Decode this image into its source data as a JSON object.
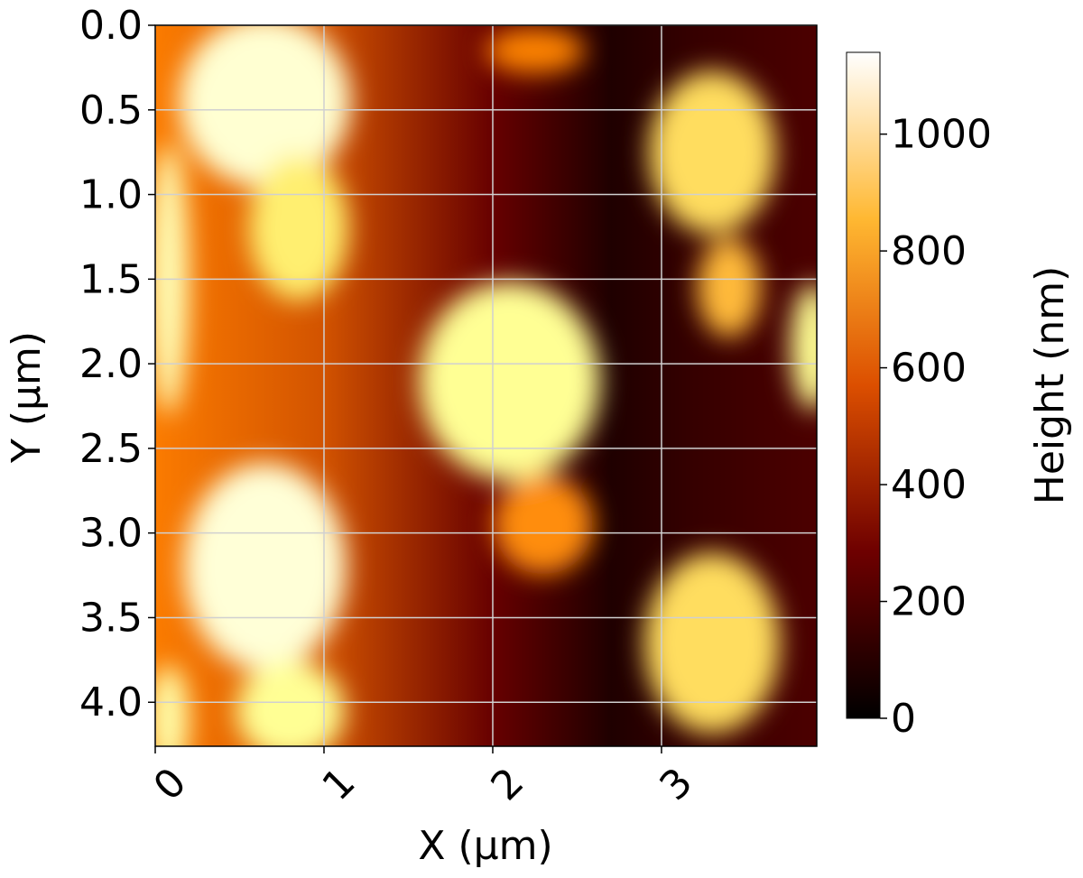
{
  "chart_data": {
    "type": "heatmap",
    "title": "",
    "xlabel": "X (µm)",
    "ylabel": "Y (µm)",
    "xlim": [
      0,
      3.92
    ],
    "ylim": [
      4.26,
      0
    ],
    "x_ticks": [
      0,
      1,
      2,
      3
    ],
    "x_tick_labels": [
      "0",
      "1",
      "2",
      "3"
    ],
    "y_ticks": [
      0.0,
      0.5,
      1.0,
      1.5,
      2.0,
      2.5,
      3.0,
      3.5,
      4.0
    ],
    "y_tick_labels": [
      "0.0",
      "0.5",
      "1.0",
      "1.5",
      "2.0",
      "2.5",
      "3.0",
      "3.5",
      "4.0"
    ],
    "grid": true,
    "colormap": "afmhot",
    "colorbar": {
      "label": "Height (nm)",
      "min": 0,
      "max": 1140,
      "ticks": [
        0,
        200,
        400,
        600,
        800,
        1000
      ],
      "tick_labels": [
        "0",
        "200",
        "400",
        "600",
        "800",
        "1000"
      ]
    },
    "background_baseline": [
      {
        "x": 0.0,
        "height": 560
      },
      {
        "x": 1.0,
        "height": 470
      },
      {
        "x": 2.0,
        "height": 230
      },
      {
        "x": 2.7,
        "height": 70
      },
      {
        "x": 3.2,
        "height": 120
      },
      {
        "x": 3.92,
        "height": 170
      }
    ],
    "features": [
      {
        "name": "cluster top-left",
        "x": 0.65,
        "y": 0.45,
        "height": 1040
      },
      {
        "name": "cluster left-mid streak",
        "x": 0.85,
        "y": 1.2,
        "height": 820
      },
      {
        "name": "cluster bottom-left",
        "x": 0.65,
        "y": 3.2,
        "height": 1050
      },
      {
        "name": "cluster bottom-left tail",
        "x": 0.8,
        "y": 4.05,
        "height": 900
      },
      {
        "name": "left edge ridge",
        "x": 0.08,
        "y": 1.5,
        "height": 980
      },
      {
        "name": "left edge lower",
        "x": 0.08,
        "y": 4.1,
        "height": 950
      },
      {
        "name": "center cluster",
        "x": 2.1,
        "y": 2.1,
        "height": 900
      },
      {
        "name": "center cluster tail",
        "x": 2.3,
        "y": 2.95,
        "height": 600
      },
      {
        "name": "top center streak",
        "x": 2.25,
        "y": 0.15,
        "height": 580
      },
      {
        "name": "cluster top-right",
        "x": 3.3,
        "y": 0.75,
        "height": 780
      },
      {
        "name": "cluster top-right tail",
        "x": 3.4,
        "y": 1.55,
        "height": 700
      },
      {
        "name": "cluster bottom-right",
        "x": 3.3,
        "y": 3.65,
        "height": 780
      },
      {
        "name": "right edge",
        "x": 3.9,
        "y": 1.9,
        "height": 900
      }
    ]
  }
}
